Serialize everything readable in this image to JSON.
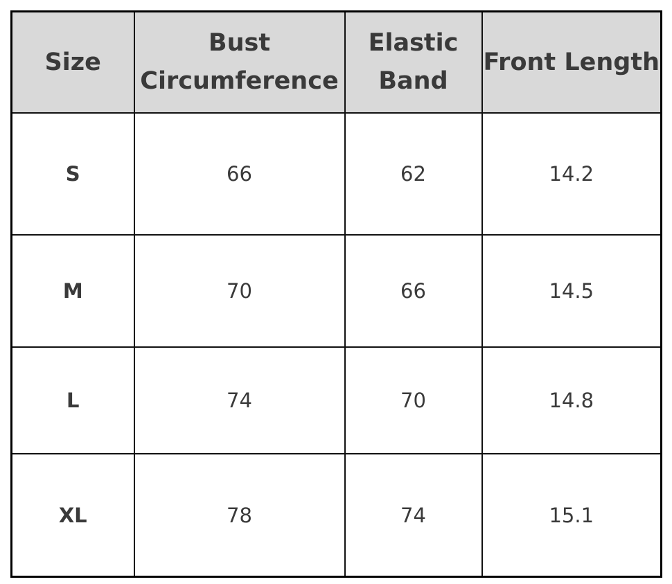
{
  "table": {
    "headers": [
      "Size",
      "Bust\nCircumference",
      "Elastic\nBand",
      "Front Length"
    ],
    "rows": [
      [
        "S",
        "66",
        "62",
        "14.2"
      ],
      [
        "M",
        "70",
        "66",
        "14.5"
      ],
      [
        "L",
        "74",
        "70",
        "14.8"
      ],
      [
        "XL",
        "78",
        "74",
        "15.1"
      ]
    ]
  },
  "colors": {
    "header_bg": "#d9d9d9",
    "text": "#3a3a3a",
    "border": "#000000"
  }
}
